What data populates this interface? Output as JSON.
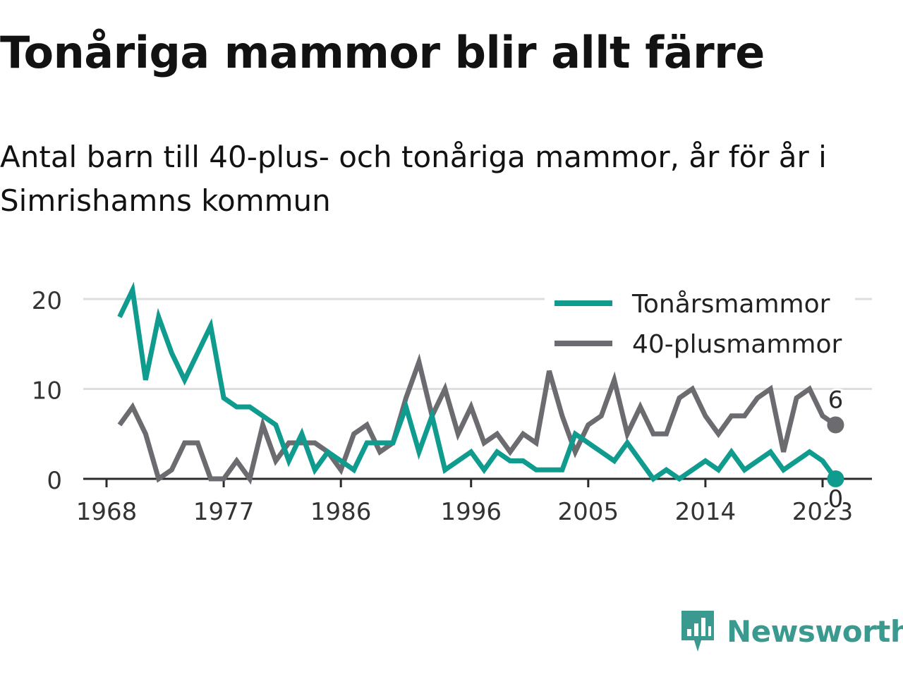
{
  "chart_data": {
    "type": "line",
    "title": "Tonåriga mammor blir allt färre",
    "subtitle": "Antal barn till 40-plus- och tonåriga mammor, år för år i Simrishamns kommun",
    "x": [
      1969,
      1970,
      1971,
      1972,
      1973,
      1974,
      1975,
      1976,
      1977,
      1978,
      1979,
      1980,
      1981,
      1982,
      1983,
      1984,
      1985,
      1986,
      1987,
      1988,
      1989,
      1990,
      1991,
      1992,
      1993,
      1994,
      1995,
      1996,
      1997,
      1998,
      1999,
      2000,
      2001,
      2002,
      2003,
      2004,
      2005,
      2006,
      2007,
      2008,
      2009,
      2010,
      2011,
      2012,
      2013,
      2014,
      2015,
      2016,
      2017,
      2018,
      2019,
      2020,
      2021,
      2022,
      2023,
      2024
    ],
    "series": [
      {
        "name": "Tonårsmammor",
        "color": "#0f9b8e",
        "values": [
          18,
          21,
          11,
          18,
          14,
          11,
          14,
          17,
          9,
          8,
          8,
          7,
          6,
          2,
          5,
          1,
          3,
          2,
          1,
          4,
          4,
          4,
          8,
          3,
          7,
          1,
          2,
          3,
          1,
          3,
          2,
          2,
          1,
          1,
          1,
          5,
          4,
          3,
          2,
          4,
          2,
          0,
          1,
          0,
          1,
          2,
          1,
          3,
          1,
          2,
          3,
          1,
          2,
          3,
          2,
          0
        ]
      },
      {
        "name": "40-plusmammor",
        "color": "#6b6b70",
        "values": [
          6,
          8,
          5,
          0,
          1,
          4,
          4,
          0,
          0,
          2,
          0,
          6,
          2,
          4,
          4,
          4,
          3,
          1,
          5,
          6,
          3,
          4,
          9,
          13,
          7,
          10,
          5,
          8,
          4,
          5,
          3,
          5,
          4,
          12,
          7,
          3,
          6,
          7,
          11,
          5,
          8,
          5,
          5,
          9,
          10,
          7,
          5,
          7,
          7,
          9,
          10,
          3,
          9,
          10,
          7,
          6
        ]
      }
    ],
    "x_ticks": [
      "1968",
      "1977",
      "1986",
      "1996",
      "2005",
      "2014",
      "2023"
    ],
    "y_ticks": [
      "0",
      "10",
      "20"
    ],
    "ylim": [
      0,
      22
    ],
    "end_labels": [
      "6",
      "0"
    ],
    "legend_position": "top-right",
    "grid": true,
    "xlabel": "",
    "ylabel": ""
  },
  "branding": {
    "logo_text": "Newsworthy",
    "logo_color": "#3a9a8f"
  }
}
